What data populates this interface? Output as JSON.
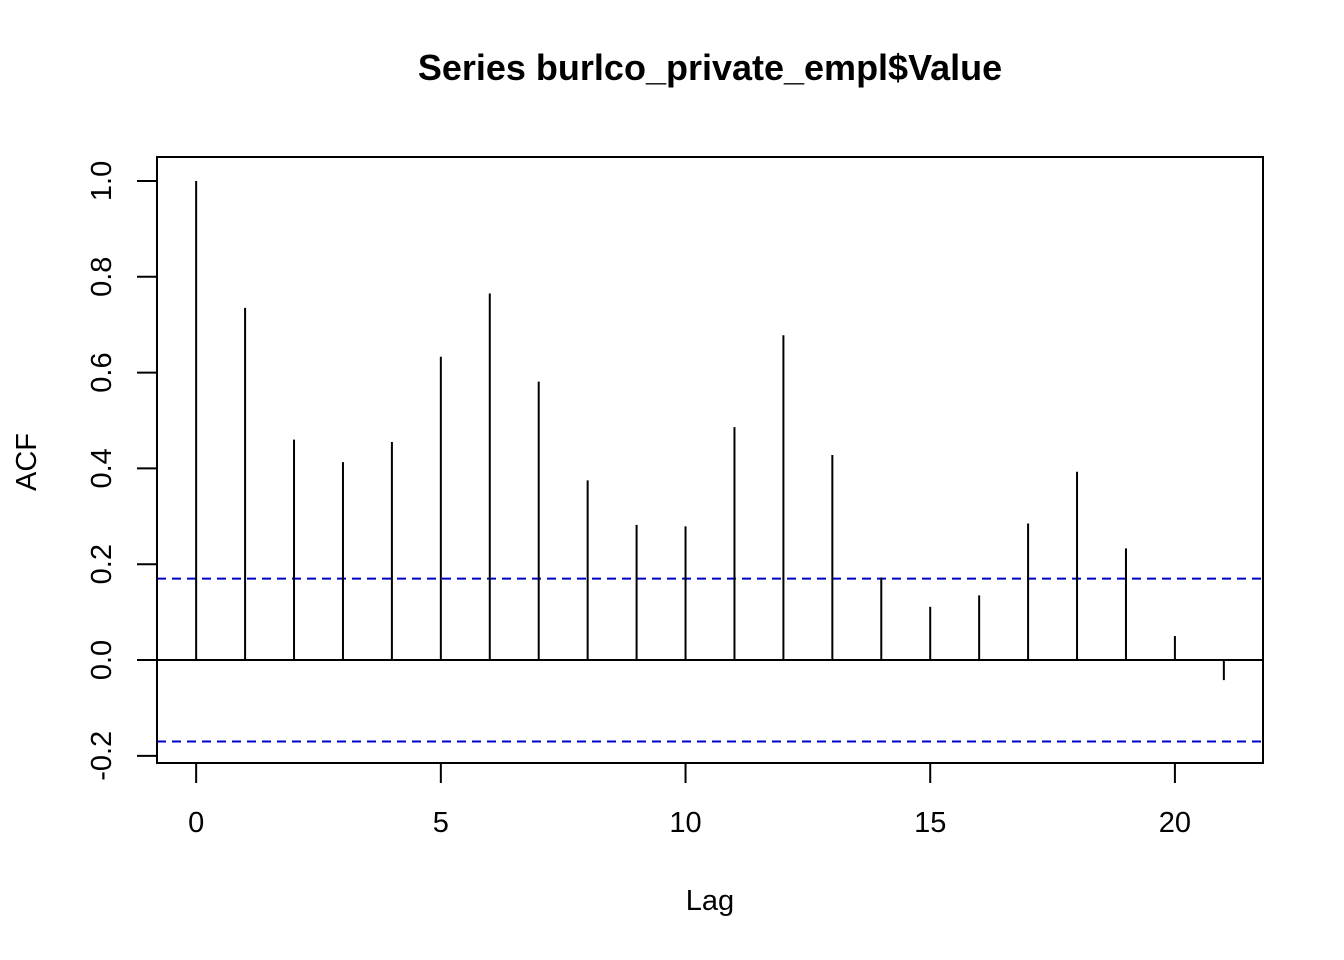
{
  "chart_data": {
    "type": "bar",
    "title": "Series  burlco_private_empl$Value",
    "xlabel": "Lag",
    "ylabel": "ACF",
    "xlim": [
      -0.8,
      21.8
    ],
    "ylim": [
      -0.215,
      1.05
    ],
    "x_ticks": [
      0,
      5,
      10,
      15,
      20
    ],
    "y_ticks": [
      -0.2,
      0.0,
      0.2,
      0.4,
      0.6,
      0.8,
      1.0
    ],
    "x": [
      0,
      1,
      2,
      3,
      4,
      5,
      6,
      7,
      8,
      9,
      10,
      11,
      12,
      13,
      14,
      15,
      16,
      17,
      18,
      19,
      20,
      21
    ],
    "values": [
      1.0,
      0.735,
      0.46,
      0.413,
      0.455,
      0.633,
      0.765,
      0.581,
      0.375,
      0.282,
      0.279,
      0.486,
      0.678,
      0.428,
      0.172,
      0.111,
      0.135,
      0.285,
      0.393,
      0.233,
      0.05,
      -0.042
    ],
    "confidence_bounds": [
      0.17,
      -0.17
    ],
    "zero_line": 0,
    "colors": {
      "bars": "#000000",
      "confidence": "#0000cc",
      "frame": "#000000"
    },
    "grid": false,
    "legend": "none"
  }
}
